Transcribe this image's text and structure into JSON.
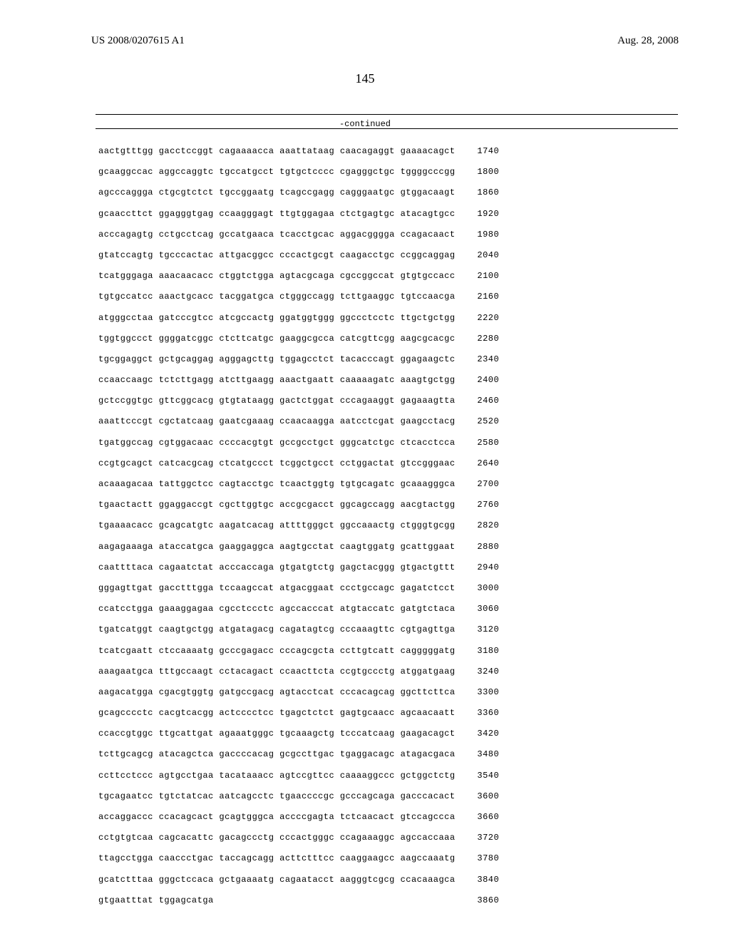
{
  "header": {
    "pub_number": "US 2008/0207615 A1",
    "pub_date": "Aug. 28, 2008"
  },
  "page_number": "145",
  "continued_label": "-continued",
  "sequences": [
    {
      "cols": [
        "aactgtttgg",
        "gacctccggt",
        "cagaaaacca",
        "aaattataag",
        "caacagaggt",
        "gaaaacagct"
      ],
      "num": "1740"
    },
    {
      "cols": [
        "gcaaggccac",
        "aggccaggtc",
        "tgccatgcct",
        "tgtgctcccc",
        "cgagggctgc",
        "tggggcccgg"
      ],
      "num": "1800"
    },
    {
      "cols": [
        "agcccaggga",
        "ctgcgtctct",
        "tgccggaatg",
        "tcagccgagg",
        "cagggaatgc",
        "gtggacaagt"
      ],
      "num": "1860"
    },
    {
      "cols": [
        "gcaaccttct",
        "ggagggtgag",
        "ccaagggagt",
        "ttgtggagaa",
        "ctctgagtgc",
        "atacagtgcc"
      ],
      "num": "1920"
    },
    {
      "cols": [
        "acccagagtg",
        "cctgcctcag",
        "gccatgaaca",
        "tcacctgcac",
        "aggacgggga",
        "ccagacaact"
      ],
      "num": "1980"
    },
    {
      "cols": [
        "gtatccagtg",
        "tgcccactac",
        "attgacggcc",
        "cccactgcgt",
        "caagacctgc",
        "ccggcaggag"
      ],
      "num": "2040"
    },
    {
      "cols": [
        "tcatgggaga",
        "aaacaacacc",
        "ctggtctgga",
        "agtacgcaga",
        "cgccggccat",
        "gtgtgccacc"
      ],
      "num": "2100"
    },
    {
      "cols": [
        "tgtgccatcc",
        "aaactgcacc",
        "tacggatgca",
        "ctgggccagg",
        "tcttgaaggc",
        "tgtccaacga"
      ],
      "num": "2160"
    },
    {
      "cols": [
        "atgggcctaa",
        "gatcccgtcc",
        "atcgccactg",
        "ggatggtggg",
        "ggccctcctc",
        "ttgctgctgg"
      ],
      "num": "2220"
    },
    {
      "cols": [
        "tggtggccct",
        "ggggatcggc",
        "ctcttcatgc",
        "gaaggcgcca",
        "catcgttcgg",
        "aagcgcacgc"
      ],
      "num": "2280"
    },
    {
      "cols": [
        "tgcggaggct",
        "gctgcaggag",
        "agggagcttg",
        "tggagcctct",
        "tacacccagt",
        "ggagaagctc"
      ],
      "num": "2340"
    },
    {
      "cols": [
        "ccaaccaagc",
        "tctcttgagg",
        "atcttgaagg",
        "aaactgaatt",
        "caaaaagatc",
        "aaagtgctgg"
      ],
      "num": "2400"
    },
    {
      "cols": [
        "gctccggtgc",
        "gttcggcacg",
        "gtgtataagg",
        "gactctggat",
        "cccagaaggt",
        "gagaaagtta"
      ],
      "num": "2460"
    },
    {
      "cols": [
        "aaattcccgt",
        "cgctatcaag",
        "gaatcgaaag",
        "ccaacaagga",
        "aatcctcgat",
        "gaagcctacg"
      ],
      "num": "2520"
    },
    {
      "cols": [
        "tgatggccag",
        "cgtggacaac",
        "ccccacgtgt",
        "gccgcctgct",
        "gggcatctgc",
        "ctcacctcca"
      ],
      "num": "2580"
    },
    {
      "cols": [
        "ccgtgcagct",
        "catcacgcag",
        "ctcatgccct",
        "tcggctgcct",
        "cctggactat",
        "gtccgggaac"
      ],
      "num": "2640"
    },
    {
      "cols": [
        "acaaagacaa",
        "tattggctcc",
        "cagtacctgc",
        "tcaactggtg",
        "tgtgcagatc",
        "gcaaagggca"
      ],
      "num": "2700"
    },
    {
      "cols": [
        "tgaactactt",
        "ggaggaccgt",
        "cgcttggtgc",
        "accgcgacct",
        "ggcagccagg",
        "aacgtactgg"
      ],
      "num": "2760"
    },
    {
      "cols": [
        "tgaaaacacc",
        "gcagcatgtc",
        "aagatcacag",
        "attttgggct",
        "ggccaaactg",
        "ctgggtgcgg"
      ],
      "num": "2820"
    },
    {
      "cols": [
        "aagagaaaga",
        "ataccatgca",
        "gaaggaggca",
        "aagtgcctat",
        "caagtggatg",
        "gcattggaat"
      ],
      "num": "2880"
    },
    {
      "cols": [
        "caattttaca",
        "cagaatctat",
        "acccaccaga",
        "gtgatgtctg",
        "gagctacggg",
        "gtgactgttt"
      ],
      "num": "2940"
    },
    {
      "cols": [
        "gggagttgat",
        "gacctttgga",
        "tccaagccat",
        "atgacggaat",
        "ccctgccagc",
        "gagatctcct"
      ],
      "num": "3000"
    },
    {
      "cols": [
        "ccatcctgga",
        "gaaaggagaa",
        "cgcctccctc",
        "agccacccat",
        "atgtaccatc",
        "gatgtctaca"
      ],
      "num": "3060"
    },
    {
      "cols": [
        "tgatcatggt",
        "caagtgctgg",
        "atgatagacg",
        "cagatagtcg",
        "cccaaagttc",
        "cgtgagttga"
      ],
      "num": "3120"
    },
    {
      "cols": [
        "tcatcgaatt",
        "ctccaaaatg",
        "gcccgagacc",
        "cccagcgcta",
        "ccttgtcatt",
        "cagggggatg"
      ],
      "num": "3180"
    },
    {
      "cols": [
        "aaagaatgca",
        "tttgccaagt",
        "cctacagact",
        "ccaacttcta",
        "ccgtgccctg",
        "atggatgaag"
      ],
      "num": "3240"
    },
    {
      "cols": [
        "aagacatgga",
        "cgacgtggtg",
        "gatgccgacg",
        "agtacctcat",
        "cccacagcag",
        "ggcttcttca"
      ],
      "num": "3300"
    },
    {
      "cols": [
        "gcagcccctc",
        "cacgtcacgg",
        "actcccctcc",
        "tgagctctct",
        "gagtgcaacc",
        "agcaacaatt"
      ],
      "num": "3360"
    },
    {
      "cols": [
        "ccaccgtggc",
        "ttgcattgat",
        "agaaatgggc",
        "tgcaaagctg",
        "tcccatcaag",
        "gaagacagct"
      ],
      "num": "3420"
    },
    {
      "cols": [
        "tcttgcagcg",
        "atacagctca",
        "gaccccacag",
        "gcgccttgac",
        "tgaggacagc",
        "atagacgaca"
      ],
      "num": "3480"
    },
    {
      "cols": [
        "ccttcctccc",
        "agtgcctgaa",
        "tacataaacc",
        "agtccgttcc",
        "caaaaggccc",
        "gctggctctg"
      ],
      "num": "3540"
    },
    {
      "cols": [
        "tgcagaatcc",
        "tgtctatcac",
        "aatcagcctc",
        "tgaaccccgc",
        "gcccagcaga",
        "gacccacact"
      ],
      "num": "3600"
    },
    {
      "cols": [
        "accaggaccc",
        "ccacagcact",
        "gcagtgggca",
        "accccgagta",
        "tctcaacact",
        "gtccagccca"
      ],
      "num": "3660"
    },
    {
      "cols": [
        "cctgtgtcaa",
        "cagcacattc",
        "gacagccctg",
        "cccactgggc",
        "ccagaaaggc",
        "agccaccaaa"
      ],
      "num": "3720"
    },
    {
      "cols": [
        "ttagcctgga",
        "caaccctgac",
        "taccagcagg",
        "acttctttcc",
        "caaggaagcc",
        "aagccaaatg"
      ],
      "num": "3780"
    },
    {
      "cols": [
        "gcatctttaa",
        "gggctccaca",
        "gctgaaaatg",
        "cagaatacct",
        "aagggtcgcg",
        "ccacaaagca"
      ],
      "num": "3840"
    },
    {
      "cols": [
        "gtgaatttat",
        "tggagcatga",
        "",
        "",
        "",
        ""
      ],
      "num": "3860"
    }
  ]
}
